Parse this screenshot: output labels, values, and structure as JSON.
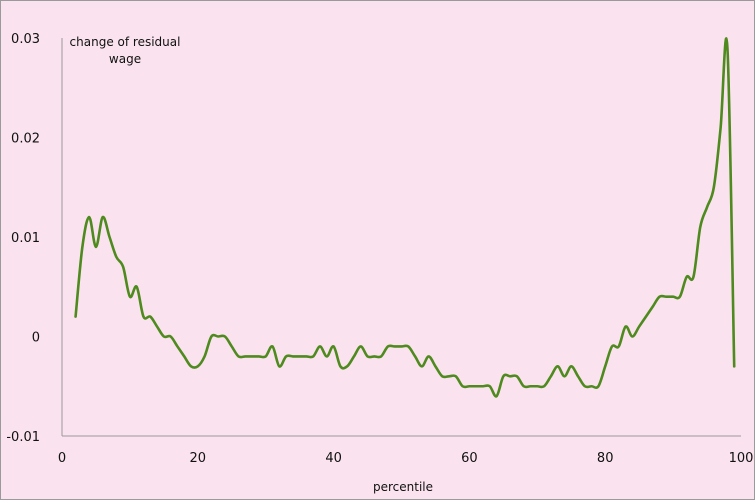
{
  "chart_data": {
    "type": "line",
    "title": "",
    "xlabel": "percentile",
    "ylabel": "",
    "annotation": [
      "change of residual",
      "wage"
    ],
    "xlim": [
      0,
      100
    ],
    "ylim": [
      -0.01,
      0.03
    ],
    "x_ticks": [
      0,
      20,
      40,
      60,
      80,
      100
    ],
    "x_tick_labels": [
      "0",
      "20",
      "40",
      "60",
      "80",
      "100"
    ],
    "y_ticks": [
      -0.01,
      0,
      0.01,
      0.02,
      0.03
    ],
    "y_tick_labels": [
      "-0.01",
      "0",
      "0.01",
      "0.02",
      "0.03"
    ],
    "grid": false,
    "colors": {
      "plot_background": "#fae3ee",
      "line": "#4e8a1e",
      "axis": "#9a9a9a"
    },
    "series": [
      {
        "x": [
          2,
          3,
          4,
          5,
          6,
          7,
          8,
          9,
          10,
          11,
          12,
          13,
          14,
          15,
          16,
          17,
          18,
          19,
          20,
          21,
          22,
          23,
          24,
          25,
          26,
          27,
          28,
          29,
          30,
          31,
          32,
          33,
          34,
          35,
          36,
          37,
          38,
          39,
          40,
          41,
          42,
          43,
          44,
          45,
          46,
          47,
          48,
          49,
          50,
          51,
          52,
          53,
          54,
          55,
          56,
          57,
          58,
          59,
          60,
          61,
          62,
          63,
          64,
          65,
          66,
          67,
          68,
          69,
          70,
          71,
          72,
          73,
          74,
          75,
          76,
          77,
          78,
          79,
          80,
          81,
          82,
          83,
          84,
          85,
          86,
          87,
          88,
          89,
          90,
          91,
          92,
          93,
          94,
          95,
          96,
          97,
          98,
          99
        ],
        "values": [
          0.002,
          0.009,
          0.012,
          0.009,
          0.012,
          0.01,
          0.008,
          0.007,
          0.004,
          0.005,
          0.002,
          0.002,
          0.001,
          0,
          0,
          -0.001,
          -0.002,
          -0.003,
          -0.003,
          -0.002,
          0,
          0,
          0,
          -0.001,
          -0.002,
          -0.002,
          -0.002,
          -0.002,
          -0.002,
          -0.001,
          -0.003,
          -0.002,
          -0.002,
          -0.002,
          -0.002,
          -0.002,
          -0.001,
          -0.002,
          -0.001,
          -0.003,
          -0.003,
          -0.002,
          -0.001,
          -0.002,
          -0.002,
          -0.002,
          -0.001,
          -0.001,
          -0.001,
          -0.001,
          -0.002,
          -0.003,
          -0.002,
          -0.003,
          -0.004,
          -0.004,
          -0.004,
          -0.005,
          -0.005,
          -0.005,
          -0.005,
          -0.005,
          -0.006,
          -0.004,
          -0.004,
          -0.004,
          -0.005,
          -0.005,
          -0.005,
          -0.005,
          -0.004,
          -0.003,
          -0.004,
          -0.003,
          -0.004,
          -0.005,
          -0.005,
          -0.005,
          -0.003,
          -0.001,
          -0.001,
          0.001,
          0,
          0.001,
          0.002,
          0.003,
          0.004,
          0.004,
          0.004,
          0.004,
          0.006,
          0.006,
          0.011,
          0.013,
          0.015,
          0.021,
          0.029,
          -0.003
        ]
      }
    ]
  }
}
